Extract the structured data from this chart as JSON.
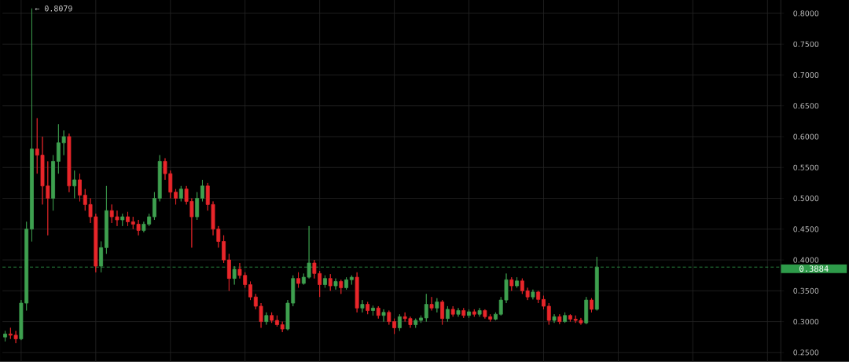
{
  "chart_data": {
    "type": "candlestick",
    "categories": [
      null,
      null,
      null,
      null,
      null,
      null,
      null,
      null,
      null,
      null,
      null,
      null,
      null,
      null,
      null,
      null,
      null,
      null,
      null,
      null,
      null,
      null,
      null,
      null,
      null,
      null,
      null,
      null,
      null,
      null,
      null,
      null,
      null,
      null,
      null,
      null,
      null,
      null,
      null,
      null,
      null,
      null,
      null,
      null,
      null,
      null,
      null,
      null,
      null,
      null,
      null,
      null,
      null,
      null,
      null,
      null,
      null,
      null,
      null,
      null,
      null,
      null,
      null,
      null,
      null,
      null,
      null,
      null,
      null,
      null,
      null,
      null,
      null,
      null,
      null,
      null,
      null,
      null,
      null,
      null,
      null,
      null,
      null,
      null,
      null,
      null,
      null,
      null,
      null,
      null,
      null,
      null,
      null,
      null,
      null,
      null,
      null,
      null,
      null,
      null,
      null,
      null,
      null,
      null,
      null,
      null,
      null,
      null,
      null,
      null,
      null,
      null,
      null,
      null,
      null,
      null,
      null,
      null,
      null,
      null,
      null,
      null,
      null,
      null,
      null,
      null,
      null,
      null,
      null,
      null,
      null,
      null,
      null,
      null,
      null,
      null,
      null,
      null,
      null,
      null,
      null,
      null,
      null,
      null,
      null,
      null
    ],
    "ohlc": [
      [
        0.275,
        0.285,
        0.268,
        0.28
      ],
      [
        0.28,
        0.29,
        0.272,
        0.278
      ],
      [
        0.278,
        0.285,
        0.265,
        0.272
      ],
      [
        0.272,
        0.335,
        0.27,
        0.33
      ],
      [
        0.33,
        0.462,
        0.318,
        0.45
      ],
      [
        0.45,
        0.8079,
        0.43,
        0.58
      ],
      [
        0.58,
        0.63,
        0.54,
        0.57
      ],
      [
        0.57,
        0.6,
        0.49,
        0.52
      ],
      [
        0.52,
        0.56,
        0.44,
        0.5
      ],
      [
        0.5,
        0.57,
        0.48,
        0.56
      ],
      [
        0.56,
        0.62,
        0.54,
        0.59
      ],
      [
        0.59,
        0.61,
        0.57,
        0.6
      ],
      [
        0.6,
        0.605,
        0.51,
        0.52
      ],
      [
        0.52,
        0.545,
        0.5,
        0.53
      ],
      [
        0.53,
        0.54,
        0.495,
        0.505
      ],
      [
        0.505,
        0.515,
        0.48,
        0.49
      ],
      [
        0.49,
        0.5,
        0.46,
        0.47
      ],
      [
        0.47,
        0.475,
        0.38,
        0.39
      ],
      [
        0.39,
        0.43,
        0.38,
        0.42
      ],
      [
        0.42,
        0.52,
        0.41,
        0.48
      ],
      [
        0.48,
        0.49,
        0.46,
        0.47
      ],
      [
        0.47,
        0.48,
        0.455,
        0.465
      ],
      [
        0.465,
        0.475,
        0.455,
        0.47
      ],
      [
        0.47,
        0.478,
        0.455,
        0.462
      ],
      [
        0.462,
        0.47,
        0.45,
        0.458
      ],
      [
        0.458,
        0.465,
        0.44,
        0.448
      ],
      [
        0.448,
        0.462,
        0.445,
        0.458
      ],
      [
        0.458,
        0.475,
        0.455,
        0.47
      ],
      [
        0.47,
        0.51,
        0.465,
        0.5
      ],
      [
        0.5,
        0.57,
        0.495,
        0.56
      ],
      [
        0.56,
        0.565,
        0.53,
        0.54
      ],
      [
        0.54,
        0.545,
        0.5,
        0.51
      ],
      [
        0.51,
        0.515,
        0.49,
        0.5
      ],
      [
        0.5,
        0.52,
        0.495,
        0.515
      ],
      [
        0.515,
        0.52,
        0.49,
        0.495
      ],
      [
        0.495,
        0.5,
        0.42,
        0.47
      ],
      [
        0.47,
        0.51,
        0.465,
        0.5
      ],
      [
        0.5,
        0.53,
        0.495,
        0.52
      ],
      [
        0.52,
        0.525,
        0.48,
        0.49
      ],
      [
        0.49,
        0.495,
        0.44,
        0.45
      ],
      [
        0.45,
        0.455,
        0.42,
        0.43
      ],
      [
        0.43,
        0.44,
        0.395,
        0.4
      ],
      [
        0.4,
        0.41,
        0.35,
        0.37
      ],
      [
        0.37,
        0.39,
        0.36,
        0.385
      ],
      [
        0.385,
        0.395,
        0.37,
        0.375
      ],
      [
        0.375,
        0.38,
        0.355,
        0.36
      ],
      [
        0.36,
        0.365,
        0.335,
        0.34
      ],
      [
        0.34,
        0.345,
        0.32,
        0.325
      ],
      [
        0.325,
        0.33,
        0.29,
        0.3
      ],
      [
        0.3,
        0.315,
        0.295,
        0.31
      ],
      [
        0.31,
        0.315,
        0.298,
        0.302
      ],
      [
        0.302,
        0.31,
        0.292,
        0.295
      ],
      [
        0.295,
        0.3,
        0.283,
        0.288
      ],
      [
        0.288,
        0.335,
        0.286,
        0.33
      ],
      [
        0.33,
        0.375,
        0.325,
        0.37
      ],
      [
        0.37,
        0.38,
        0.355,
        0.362
      ],
      [
        0.362,
        0.378,
        0.36,
        0.372
      ],
      [
        0.372,
        0.455,
        0.37,
        0.395
      ],
      [
        0.395,
        0.4,
        0.37,
        0.378
      ],
      [
        0.378,
        0.382,
        0.34,
        0.36
      ],
      [
        0.36,
        0.375,
        0.355,
        0.37
      ],
      [
        0.37,
        0.377,
        0.35,
        0.358
      ],
      [
        0.358,
        0.37,
        0.352,
        0.365
      ],
      [
        0.365,
        0.368,
        0.345,
        0.355
      ],
      [
        0.355,
        0.372,
        0.352,
        0.368
      ],
      [
        0.368,
        0.375,
        0.36,
        0.372
      ],
      [
        0.372,
        0.38,
        0.315,
        0.322
      ],
      [
        0.322,
        0.335,
        0.315,
        0.328
      ],
      [
        0.328,
        0.332,
        0.312,
        0.318
      ],
      [
        0.318,
        0.326,
        0.31,
        0.322
      ],
      [
        0.322,
        0.325,
        0.305,
        0.31
      ],
      [
        0.31,
        0.32,
        0.3,
        0.315
      ],
      [
        0.315,
        0.318,
        0.295,
        0.3
      ],
      [
        0.3,
        0.305,
        0.28,
        0.29
      ],
      [
        0.29,
        0.312,
        0.285,
        0.308
      ],
      [
        0.308,
        0.315,
        0.3,
        0.305
      ],
      [
        0.305,
        0.308,
        0.29,
        0.295
      ],
      [
        0.295,
        0.305,
        0.29,
        0.302
      ],
      [
        0.302,
        0.31,
        0.298,
        0.306
      ],
      [
        0.306,
        0.345,
        0.3,
        0.328
      ],
      [
        0.328,
        0.34,
        0.318,
        0.322
      ],
      [
        0.322,
        0.338,
        0.315,
        0.332
      ],
      [
        0.332,
        0.335,
        0.295,
        0.305
      ],
      [
        0.305,
        0.325,
        0.3,
        0.32
      ],
      [
        0.32,
        0.325,
        0.308,
        0.312
      ],
      [
        0.312,
        0.322,
        0.308,
        0.318
      ],
      [
        0.318,
        0.322,
        0.306,
        0.31
      ],
      [
        0.31,
        0.32,
        0.306,
        0.316
      ],
      [
        0.316,
        0.32,
        0.308,
        0.312
      ],
      [
        0.312,
        0.322,
        0.308,
        0.318
      ],
      [
        0.318,
        0.32,
        0.305,
        0.308
      ],
      [
        0.308,
        0.312,
        0.3,
        0.304
      ],
      [
        0.304,
        0.315,
        0.302,
        0.312
      ],
      [
        0.312,
        0.34,
        0.31,
        0.335
      ],
      [
        0.335,
        0.378,
        0.33,
        0.368
      ],
      [
        0.368,
        0.372,
        0.35,
        0.358
      ],
      [
        0.358,
        0.372,
        0.355,
        0.366
      ],
      [
        0.366,
        0.37,
        0.345,
        0.35
      ],
      [
        0.35,
        0.355,
        0.335,
        0.34
      ],
      [
        0.34,
        0.352,
        0.336,
        0.348
      ],
      [
        0.348,
        0.35,
        0.33,
        0.336
      ],
      [
        0.336,
        0.342,
        0.32,
        0.325
      ],
      [
        0.325,
        0.33,
        0.295,
        0.302
      ],
      [
        0.302,
        0.312,
        0.298,
        0.308
      ],
      [
        0.308,
        0.312,
        0.296,
        0.3
      ],
      [
        0.3,
        0.315,
        0.298,
        0.31
      ],
      [
        0.31,
        0.312,
        0.3,
        0.304
      ],
      [
        0.304,
        0.31,
        0.298,
        0.302
      ],
      [
        0.302,
        0.306,
        0.295,
        0.298
      ],
      [
        0.298,
        0.34,
        0.296,
        0.335
      ],
      [
        0.335,
        0.338,
        0.315,
        0.32
      ],
      [
        0.32,
        0.405,
        0.318,
        0.3884
      ],
      null,
      null,
      null,
      null,
      null,
      null,
      null,
      null,
      null,
      null,
      null,
      null,
      null,
      null,
      null,
      null,
      null,
      null,
      null,
      null,
      null,
      null,
      null,
      null,
      null,
      null,
      null,
      null,
      null,
      null,
      null,
      null,
      null,
      null
    ],
    "colors": [
      "#3ea04f",
      "#e8262a",
      "#e8262a",
      "#3ea04f",
      "#3ea04f",
      "#3ea04f",
      "#e8262a",
      "#e8262a",
      "#e8262a",
      "#3ea04f",
      "#3ea04f",
      "#3ea04f",
      "#e8262a",
      "#3ea04f",
      "#e8262a",
      "#e8262a",
      "#e8262a",
      "#e8262a",
      "#3ea04f",
      "#3ea04f",
      "#e8262a",
      "#e8262a",
      "#3ea04f",
      "#e8262a",
      "#e8262a",
      "#e8262a",
      "#3ea04f",
      "#3ea04f",
      "#3ea04f",
      "#3ea04f",
      "#e8262a",
      "#e8262a",
      "#e8262a",
      "#3ea04f",
      "#e8262a",
      "#e8262a",
      "#3ea04f",
      "#3ea04f",
      "#e8262a",
      "#e8262a",
      "#e8262a",
      "#e8262a",
      "#e8262a",
      "#3ea04f",
      "#e8262a",
      "#e8262a",
      "#e8262a",
      "#e8262a",
      "#e8262a",
      "#3ea04f",
      "#e8262a",
      "#e8262a",
      "#e8262a",
      "#3ea04f",
      "#3ea04f",
      "#e8262a",
      "#3ea04f",
      "#3ea04f",
      "#e8262a",
      "#e8262a",
      "#3ea04f",
      "#e8262a",
      "#3ea04f",
      "#e8262a",
      "#3ea04f",
      "#3ea04f",
      "#e8262a",
      "#3ea04f",
      "#e8262a",
      "#3ea04f",
      "#e8262a",
      "#3ea04f",
      "#e8262a",
      "#e8262a",
      "#3ea04f",
      "#e8262a",
      "#e8262a",
      "#3ea04f",
      "#3ea04f",
      "#3ea04f",
      "#e8262a",
      "#3ea04f",
      "#e8262a",
      "#3ea04f",
      "#e8262a",
      "#3ea04f",
      "#e8262a",
      "#3ea04f",
      "#e8262a",
      "#3ea04f",
      "#e8262a",
      "#e8262a",
      "#3ea04f",
      "#3ea04f",
      "#3ea04f",
      "#e8262a",
      "#3ea04f",
      "#e8262a",
      "#e8262a",
      "#3ea04f",
      "#e8262a",
      "#e8262a",
      "#e8262a",
      "#3ea04f",
      "#e8262a",
      "#3ea04f",
      "#e8262a",
      "#e8262a",
      "#e8262a",
      "#3ea04f",
      "#e8262a",
      "#3ea04f",
      null,
      null,
      null,
      null,
      null,
      null,
      null,
      null,
      null,
      null,
      null,
      null,
      null,
      null,
      null,
      null,
      null,
      null,
      null,
      null,
      null,
      null,
      null,
      null,
      null,
      null,
      null,
      null,
      null,
      null,
      null,
      null,
      null,
      null
    ],
    "ylim": [
      0.235,
      0.8216
    ],
    "yticks": [
      {
        "value": 0.25,
        "label": "0.2500"
      },
      {
        "value": 0.3,
        "label": "0.3000"
      },
      {
        "value": 0.35,
        "label": "0.3500"
      },
      {
        "value": 0.4,
        "label": "0.4000"
      },
      {
        "value": 0.45,
        "label": "0.4500"
      },
      {
        "value": 0.5,
        "label": "0.5000"
      },
      {
        "value": 0.55,
        "label": "0.5500"
      },
      {
        "value": 0.6,
        "label": "0.6000"
      },
      {
        "value": 0.65,
        "label": "0.6500"
      },
      {
        "value": 0.7,
        "label": "0.7000"
      },
      {
        "value": 0.75,
        "label": "0.7500"
      },
      {
        "value": 0.8,
        "label": "0.8000"
      }
    ],
    "tick_labels": "y",
    "grid": true,
    "ref_lines": [
      {
        "axis": "y",
        "value": 0.3884,
        "label": "0.3884",
        "color": "#2e9b4a",
        "line_style": "dashed"
      }
    ],
    "annotations": [
      "← 0.8079"
    ]
  }
}
